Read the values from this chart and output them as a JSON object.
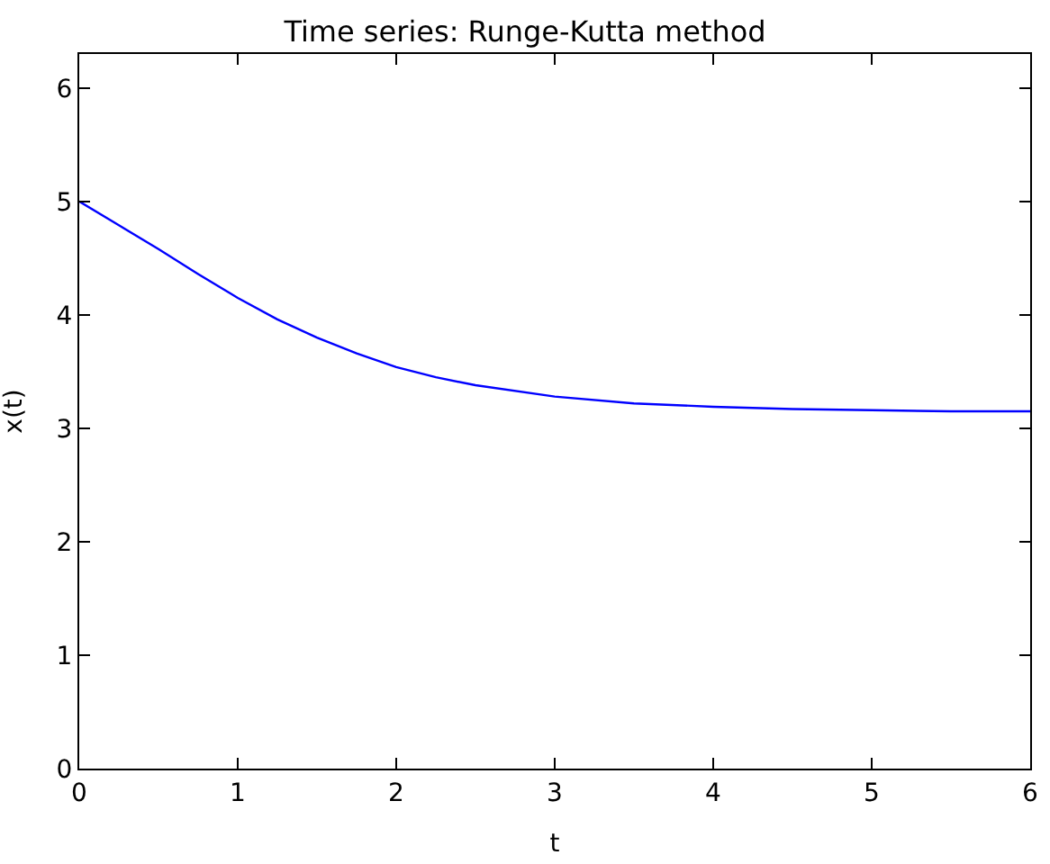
{
  "chart_data": {
    "type": "line",
    "title": "Time series: Runge-Kutta method",
    "xlabel": "t",
    "ylabel": "x(t)",
    "x": [
      0,
      0.25,
      0.5,
      0.75,
      1,
      1.25,
      1.5,
      1.75,
      2,
      2.25,
      2.5,
      3,
      3.5,
      4,
      4.5,
      5,
      5.5,
      6
    ],
    "series": [
      {
        "color": "#0000ff",
        "values": [
          5,
          4.79,
          4.58,
          4.36,
          4.15,
          3.96,
          3.8,
          3.66,
          3.54,
          3.45,
          3.38,
          3.28,
          3.22,
          3.19,
          3.17,
          3.16,
          3.15,
          3.15
        ]
      }
    ],
    "xlim": [
      0,
      6
    ],
    "ylim": [
      0,
      6.3
    ],
    "xticks": [
      0,
      1,
      2,
      3,
      4,
      5,
      6
    ],
    "yticks": [
      0,
      1,
      2,
      3,
      4,
      5,
      6
    ],
    "grid": false,
    "legend": false,
    "marker": "none",
    "line_style": "solid"
  }
}
